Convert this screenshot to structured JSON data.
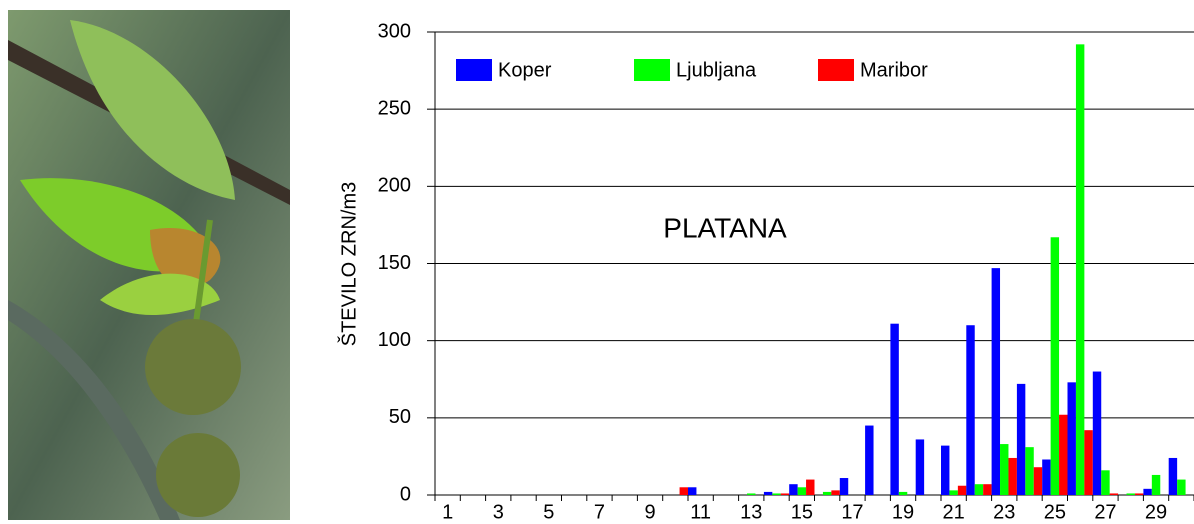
{
  "chart_data": {
    "type": "bar",
    "annotation": "PLATANA",
    "y_label": "ŠTEVILO ZRN/m3",
    "categories": [
      1,
      null,
      3,
      null,
      5,
      null,
      7,
      null,
      9,
      null,
      11,
      null,
      13,
      null,
      15,
      null,
      17,
      null,
      19,
      null,
      21,
      null,
      23,
      null,
      25,
      null,
      27,
      null,
      29,
      null
    ],
    "series": [
      {
        "name": "Koper",
        "color": "#0000ff",
        "values": [
          0,
          0,
          0,
          0,
          0,
          0,
          0,
          0,
          0,
          0,
          5,
          0,
          0,
          2,
          7,
          0,
          11,
          45,
          111,
          36,
          32,
          110,
          147,
          72,
          23,
          73,
          80,
          0,
          4,
          24
        ]
      },
      {
        "name": "Ljubljana",
        "color": "#00ff00",
        "values": [
          0,
          0,
          0,
          0,
          0,
          0,
          0,
          0,
          0,
          0,
          0,
          0,
          1,
          1,
          5,
          2,
          0,
          0,
          2,
          0,
          3,
          7,
          33,
          31,
          167,
          292,
          16,
          1,
          13,
          10
        ]
      },
      {
        "name": "Maribor",
        "color": "#ff0000",
        "values": [
          0,
          0,
          0,
          0,
          0,
          0,
          0,
          0,
          0,
          5,
          0,
          0,
          0,
          1,
          10,
          3,
          0,
          0,
          0,
          0,
          6,
          7,
          24,
          18,
          52,
          42,
          1,
          1,
          0,
          0
        ]
      }
    ],
    "ylim": [
      0,
      300
    ],
    "yticks": [
      0,
      50,
      100,
      150,
      200,
      250,
      300
    ],
    "grid": true,
    "legend": "top"
  }
}
